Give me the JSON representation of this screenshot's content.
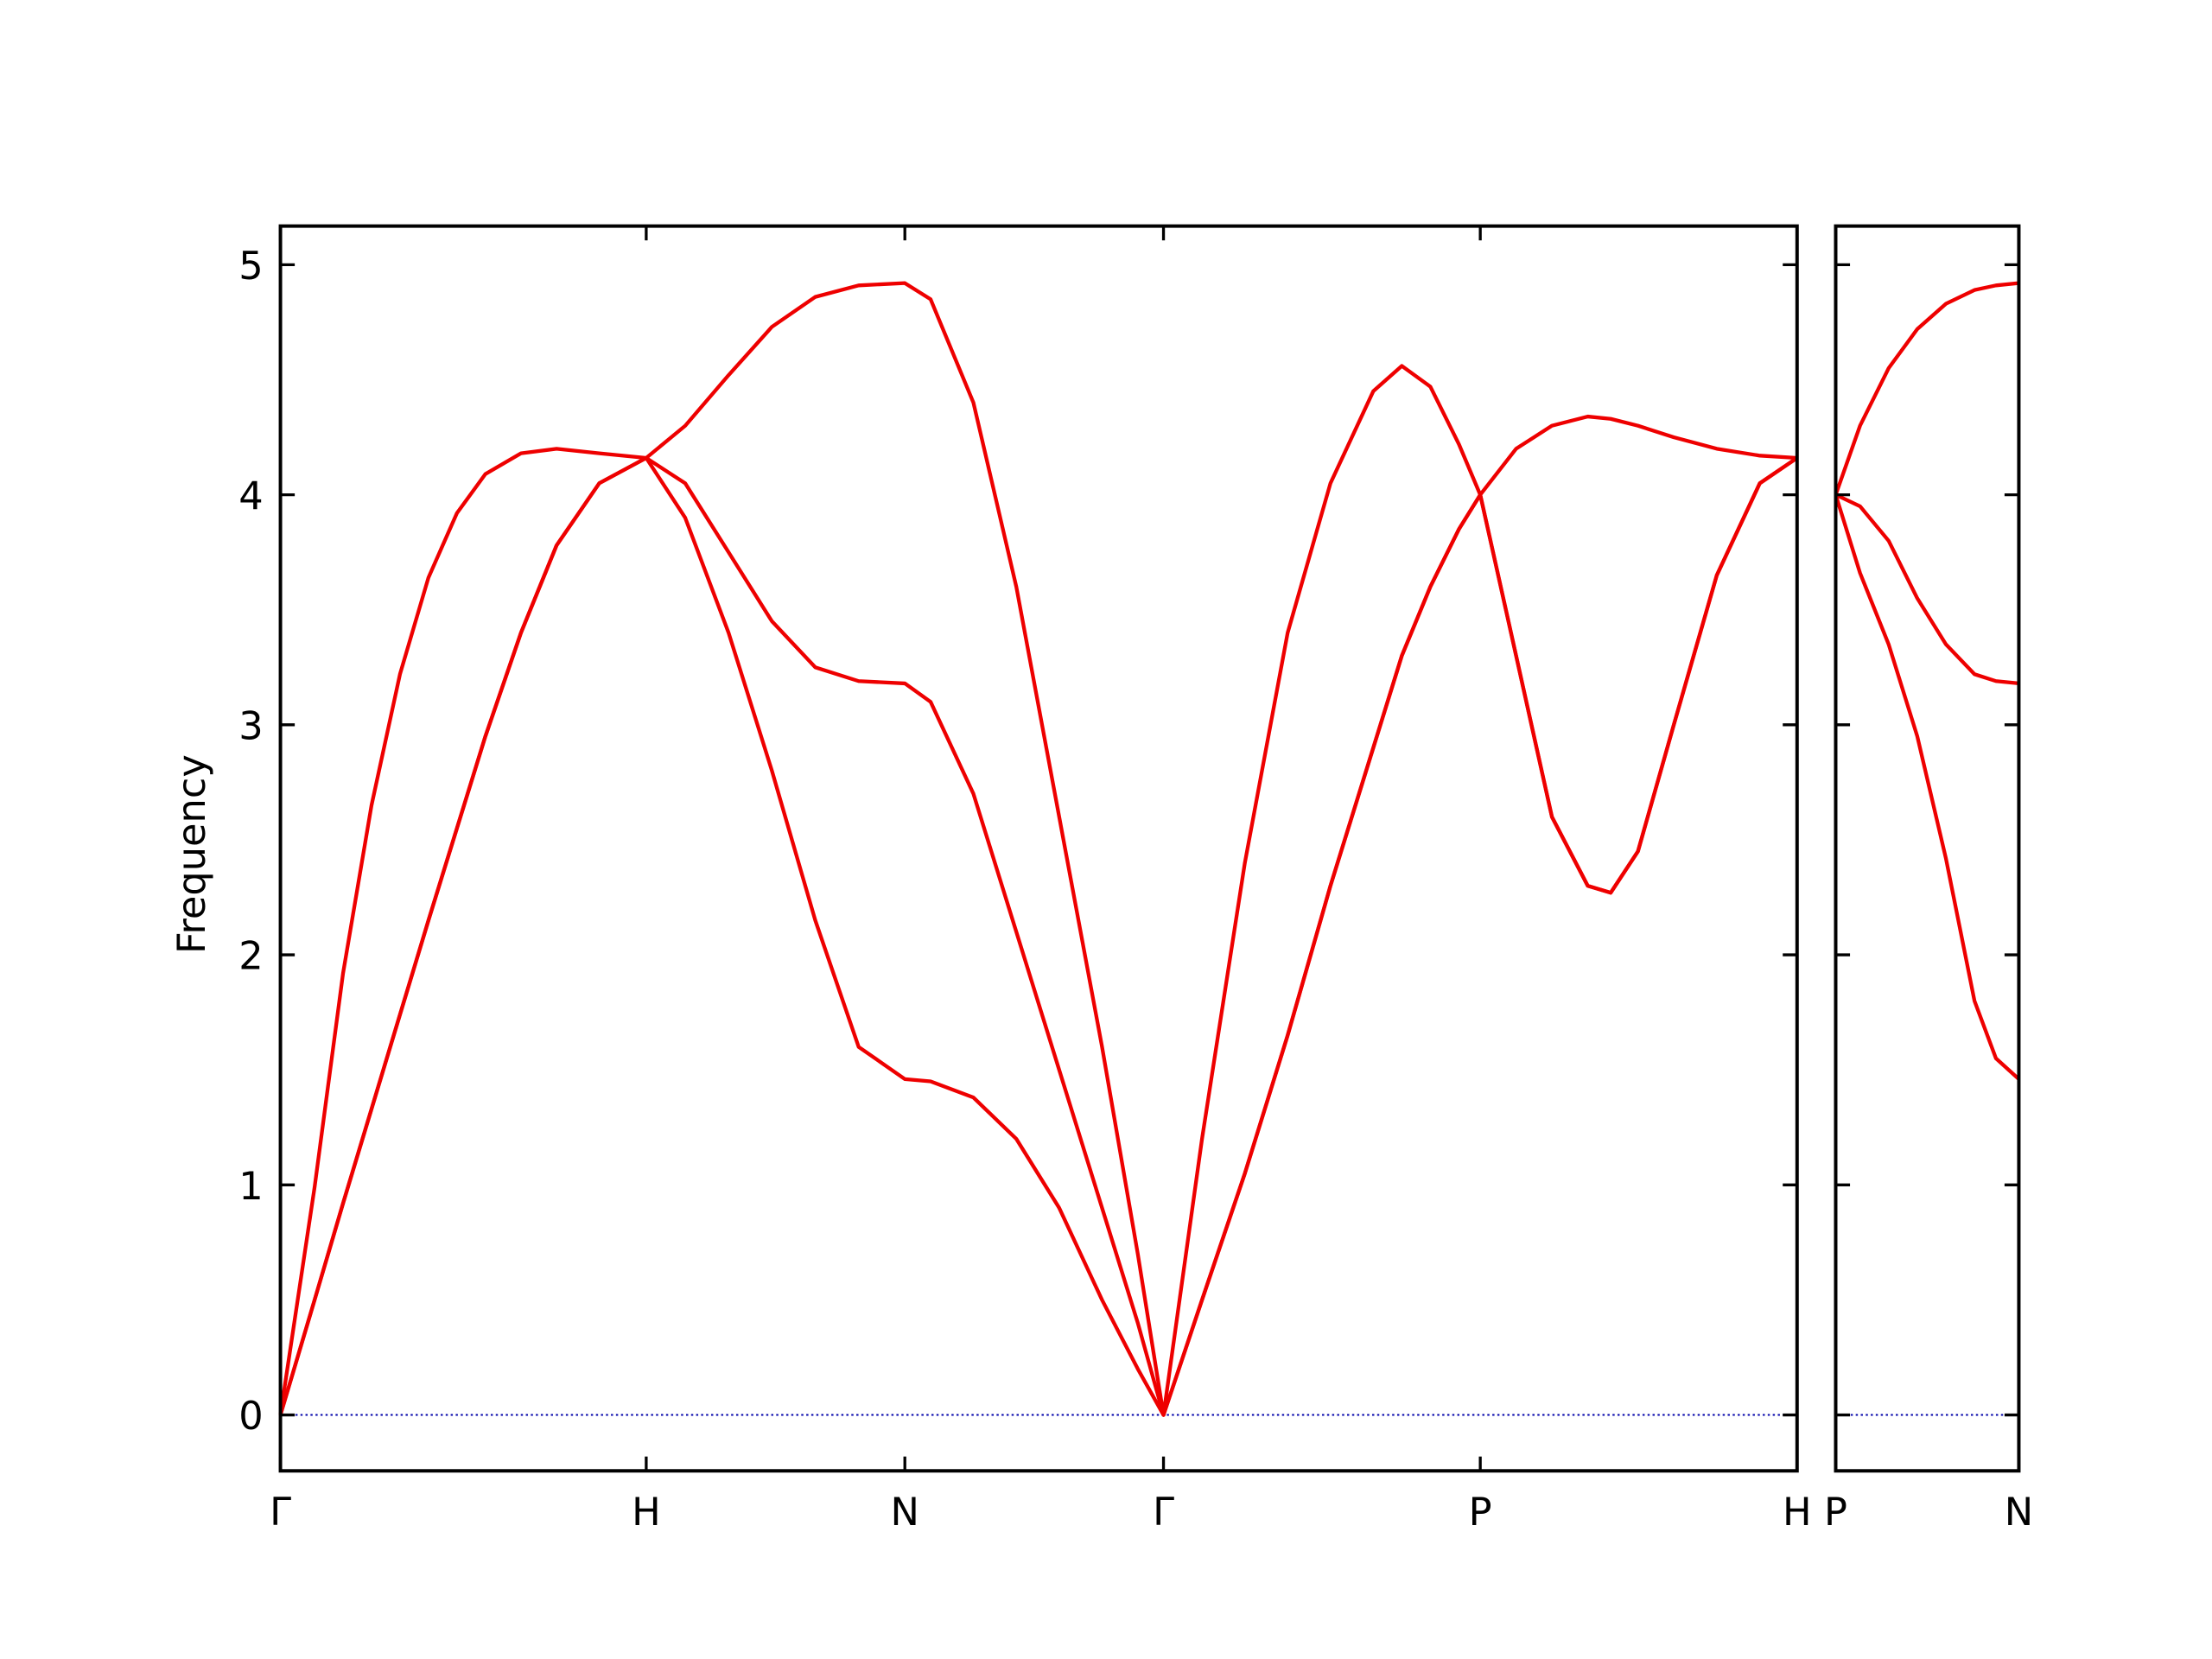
{
  "chart_data": [
    {
      "type": "line",
      "ylabel": "Frequency",
      "x": [
        0,
        0.0934,
        0.1712,
        0.249,
        0.3268,
        0.4047,
        0.4825,
        0.5603,
        0.6576,
        0.7549,
        0.8716,
        1,
        1.1066,
        1.2252,
        1.3437,
        1.4622,
        1.5807,
        1.7071,
        1.7774,
        1.8946,
        2.0118,
        2.129,
        2.2462,
        2.3439,
        2.4142,
        2.5195,
        2.6366,
        2.7536,
        2.8706,
        2.9877,
        3.0657,
        3.1437,
        3.2217,
        3.2802,
        3.3782,
        3.4761,
        3.5741,
        3.6368,
        3.7113,
        3.8093,
        3.9268,
        4.0444,
        4.1463
      ],
      "series": [
        {
          "color": "#ee0000",
          "values": [
            0,
            0.5,
            0.92,
            1.33,
            1.74,
            2.15,
            2.55,
            2.95,
            3.4,
            3.78,
            4.05,
            4.16,
            3.9,
            3.4,
            2.8,
            2.15,
            1.6,
            1.46,
            1.45,
            1.38,
            1.2,
            0.9,
            0.5,
            0.2,
            0,
            0.5,
            1.05,
            1.65,
            2.3,
            2.9,
            3.3,
            3.6,
            3.85,
            4.0,
            3.3,
            2.6,
            2.3,
            2.27,
            2.45,
            3.0,
            3.65,
            4.05,
            4.16
          ]
        },
        {
          "color": "#ee0000",
          "values": [
            0,
            0.5,
            0.92,
            1.33,
            1.74,
            2.15,
            2.55,
            2.95,
            3.4,
            3.78,
            4.05,
            4.16,
            4.05,
            3.75,
            3.45,
            3.25,
            3.19,
            3.18,
            3.1,
            2.7,
            2.1,
            1.5,
            0.9,
            0.4,
            0,
            0.5,
            1.05,
            1.65,
            2.3,
            2.9,
            3.3,
            3.6,
            3.85,
            4.0,
            3.3,
            2.6,
            2.3,
            2.27,
            2.45,
            3.0,
            3.65,
            4.05,
            4.16
          ]
        },
        {
          "color": "#ee0000",
          "values": [
            0,
            0.99,
            1.92,
            2.65,
            3.22,
            3.64,
            3.92,
            4.09,
            4.18,
            4.2,
            4.18,
            4.16,
            4.3,
            4.52,
            4.73,
            4.86,
            4.91,
            4.92,
            4.85,
            4.4,
            3.6,
            2.6,
            1.6,
            0.7,
            0,
            1.2,
            2.4,
            3.4,
            4.05,
            4.45,
            4.56,
            4.47,
            4.22,
            4.0,
            4.2,
            4.3,
            4.34,
            4.33,
            4.3,
            4.25,
            4.2,
            4.17,
            4.16
          ]
        }
      ],
      "xlim": [
        0,
        4.1463
      ],
      "xticks": [
        {
          "value": 0,
          "label": "Γ"
        },
        {
          "value": 1,
          "label": "H"
        },
        {
          "value": 1.7071,
          "label": "N"
        },
        {
          "value": 2.4142,
          "label": "Γ"
        },
        {
          "value": 3.2802,
          "label": "P"
        },
        {
          "value": 4.1463,
          "label": "H"
        }
      ],
      "ylim": [
        -0.243,
        5.168
      ],
      "yticks": [
        0,
        1,
        2,
        3,
        4,
        5
      ],
      "hline": 0,
      "hline_color": "#0000aa"
    },
    {
      "type": "line",
      "x": [
        0,
        0.0664,
        0.1445,
        0.2227,
        0.3008,
        0.3789,
        0.4375,
        0.5
      ],
      "series": [
        {
          "color": "#ee0000",
          "values": [
            4.0,
            3.66,
            3.35,
            2.95,
            2.42,
            1.8,
            1.55,
            1.46
          ]
        },
        {
          "color": "#ee0000",
          "values": [
            4.0,
            3.95,
            3.8,
            3.55,
            3.35,
            3.22,
            3.19,
            3.18
          ]
        },
        {
          "color": "#ee0000",
          "values": [
            4.0,
            4.3,
            4.55,
            4.72,
            4.83,
            4.89,
            4.91,
            4.92
          ]
        }
      ],
      "xlim": [
        0,
        0.5
      ],
      "xticks": [
        {
          "value": 0,
          "label": "P"
        },
        {
          "value": 0.5,
          "label": "N"
        }
      ],
      "ylim": [
        -0.243,
        5.168
      ],
      "yticks": [
        0,
        1,
        2,
        3,
        4,
        5
      ],
      "hline": 0,
      "hline_color": "#0000aa"
    }
  ]
}
